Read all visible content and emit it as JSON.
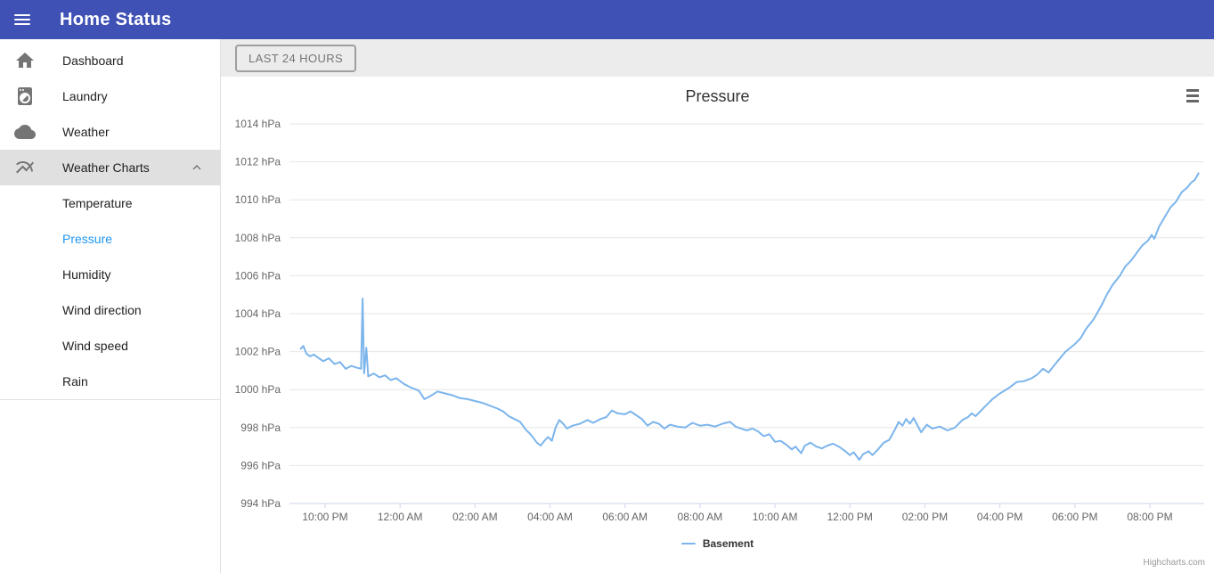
{
  "header": {
    "title": "Home Status"
  },
  "sidebar": {
    "items": [
      {
        "label": "Dashboard",
        "icon": "home"
      },
      {
        "label": "Laundry",
        "icon": "laundry"
      },
      {
        "label": "Weather",
        "icon": "cloud"
      },
      {
        "label": "Weather Charts",
        "icon": "multiline-chart",
        "active": true,
        "expanded": true
      }
    ],
    "subitems": [
      {
        "label": "Temperature"
      },
      {
        "label": "Pressure",
        "selected": true
      },
      {
        "label": "Humidity"
      },
      {
        "label": "Wind direction"
      },
      {
        "label": "Wind speed"
      },
      {
        "label": "Rain"
      }
    ]
  },
  "toolbar": {
    "range_button": "LAST 24 HOURS"
  },
  "colors": {
    "header": "#3f51b5",
    "active_link": "#2196f3",
    "series_basement": "#7cb5ec"
  },
  "chart_data": {
    "type": "line",
    "title": "Pressure",
    "ylabel": "hPa",
    "credits": "Highcharts.com",
    "legend_position": "bottom-center",
    "grid": true,
    "ylim": [
      994,
      1014
    ],
    "xlim_hours": [
      21.05,
      45.45
    ],
    "x_hours_note": "decimal hours; 22 = 10:00 PM day 1, values > 24 are next day",
    "y_ticks": [
      {
        "v": 994,
        "label": "994 hPa"
      },
      {
        "v": 996,
        "label": "996 hPa"
      },
      {
        "v": 998,
        "label": "998 hPa"
      },
      {
        "v": 1000,
        "label": "1000 hPa"
      },
      {
        "v": 1002,
        "label": "1002 hPa"
      },
      {
        "v": 1004,
        "label": "1004 hPa"
      },
      {
        "v": 1006,
        "label": "1006 hPa"
      },
      {
        "v": 1008,
        "label": "1008 hPa"
      },
      {
        "v": 1010,
        "label": "1010 hPa"
      },
      {
        "v": 1012,
        "label": "1012 hPa"
      },
      {
        "v": 1014,
        "label": "1014 hPa"
      }
    ],
    "x_ticks": [
      {
        "hour": 22,
        "label": "10:00 PM"
      },
      {
        "hour": 24,
        "label": "12:00 AM"
      },
      {
        "hour": 26,
        "label": "02:00 AM"
      },
      {
        "hour": 28,
        "label": "04:00 AM"
      },
      {
        "hour": 30,
        "label": "06:00 AM"
      },
      {
        "hour": 32,
        "label": "08:00 AM"
      },
      {
        "hour": 34,
        "label": "10:00 AM"
      },
      {
        "hour": 36,
        "label": "12:00 PM"
      },
      {
        "hour": 38,
        "label": "02:00 PM"
      },
      {
        "hour": 40,
        "label": "04:00 PM"
      },
      {
        "hour": 42,
        "label": "06:00 PM"
      },
      {
        "hour": 44,
        "label": "08:00 PM"
      }
    ],
    "series": [
      {
        "name": "Basement",
        "color": "#7cb5ec",
        "points": [
          [
            21.35,
            1002.15
          ],
          [
            21.42,
            1002.3
          ],
          [
            21.5,
            1001.9
          ],
          [
            21.6,
            1001.75
          ],
          [
            21.7,
            1001.85
          ],
          [
            21.8,
            1001.7
          ],
          [
            21.95,
            1001.5
          ],
          [
            22.1,
            1001.65
          ],
          [
            22.25,
            1001.35
          ],
          [
            22.4,
            1001.45
          ],
          [
            22.55,
            1001.1
          ],
          [
            22.7,
            1001.25
          ],
          [
            22.85,
            1001.15
          ],
          [
            22.96,
            1001.1
          ],
          [
            23.0,
            1004.8
          ],
          [
            23.04,
            1000.85
          ],
          [
            23.1,
            1002.2
          ],
          [
            23.15,
            1000.7
          ],
          [
            23.3,
            1000.85
          ],
          [
            23.45,
            1000.65
          ],
          [
            23.6,
            1000.75
          ],
          [
            23.75,
            1000.5
          ],
          [
            23.9,
            1000.6
          ],
          [
            24.1,
            1000.3
          ],
          [
            24.3,
            1000.1
          ],
          [
            24.5,
            999.95
          ],
          [
            24.65,
            999.5
          ],
          [
            24.8,
            999.65
          ],
          [
            25.0,
            999.9
          ],
          [
            25.2,
            999.8
          ],
          [
            25.4,
            999.7
          ],
          [
            25.6,
            999.55
          ],
          [
            25.8,
            999.5
          ],
          [
            26.0,
            999.4
          ],
          [
            26.2,
            999.3
          ],
          [
            26.4,
            999.15
          ],
          [
            26.6,
            999.0
          ],
          [
            26.75,
            998.85
          ],
          [
            26.9,
            998.6
          ],
          [
            27.05,
            998.45
          ],
          [
            27.2,
            998.3
          ],
          [
            27.35,
            997.9
          ],
          [
            27.5,
            997.6
          ],
          [
            27.65,
            997.2
          ],
          [
            27.75,
            997.05
          ],
          [
            27.85,
            997.3
          ],
          [
            27.95,
            997.5
          ],
          [
            28.05,
            997.3
          ],
          [
            28.15,
            998.0
          ],
          [
            28.25,
            998.4
          ],
          [
            28.35,
            998.2
          ],
          [
            28.45,
            997.95
          ],
          [
            28.6,
            998.1
          ],
          [
            28.8,
            998.2
          ],
          [
            29.0,
            998.4
          ],
          [
            29.15,
            998.25
          ],
          [
            29.35,
            998.45
          ],
          [
            29.5,
            998.55
          ],
          [
            29.65,
            998.9
          ],
          [
            29.8,
            998.75
          ],
          [
            30.0,
            998.7
          ],
          [
            30.15,
            998.85
          ],
          [
            30.3,
            998.65
          ],
          [
            30.45,
            998.45
          ],
          [
            30.6,
            998.1
          ],
          [
            30.75,
            998.3
          ],
          [
            30.9,
            998.2
          ],
          [
            31.05,
            997.95
          ],
          [
            31.2,
            998.15
          ],
          [
            31.4,
            998.05
          ],
          [
            31.6,
            998.0
          ],
          [
            31.8,
            998.25
          ],
          [
            32.0,
            998.1
          ],
          [
            32.2,
            998.15
          ],
          [
            32.4,
            998.05
          ],
          [
            32.6,
            998.2
          ],
          [
            32.8,
            998.3
          ],
          [
            32.95,
            998.05
          ],
          [
            33.1,
            997.95
          ],
          [
            33.25,
            997.85
          ],
          [
            33.4,
            997.95
          ],
          [
            33.55,
            997.8
          ],
          [
            33.7,
            997.55
          ],
          [
            33.85,
            997.65
          ],
          [
            34.0,
            997.25
          ],
          [
            34.15,
            997.3
          ],
          [
            34.3,
            997.1
          ],
          [
            34.45,
            996.85
          ],
          [
            34.55,
            997.0
          ],
          [
            34.7,
            996.65
          ],
          [
            34.8,
            997.05
          ],
          [
            34.95,
            997.2
          ],
          [
            35.1,
            997.0
          ],
          [
            35.25,
            996.9
          ],
          [
            35.4,
            997.05
          ],
          [
            35.55,
            997.15
          ],
          [
            35.7,
            997.0
          ],
          [
            35.85,
            996.8
          ],
          [
            36.0,
            996.55
          ],
          [
            36.1,
            996.7
          ],
          [
            36.25,
            996.3
          ],
          [
            36.35,
            996.6
          ],
          [
            36.5,
            996.75
          ],
          [
            36.6,
            996.55
          ],
          [
            36.75,
            996.85
          ],
          [
            36.9,
            997.2
          ],
          [
            37.05,
            997.35
          ],
          [
            37.2,
            997.9
          ],
          [
            37.3,
            998.3
          ],
          [
            37.4,
            998.1
          ],
          [
            37.5,
            998.45
          ],
          [
            37.6,
            998.2
          ],
          [
            37.7,
            998.5
          ],
          [
            37.9,
            997.75
          ],
          [
            38.05,
            998.15
          ],
          [
            38.2,
            997.95
          ],
          [
            38.4,
            998.05
          ],
          [
            38.6,
            997.85
          ],
          [
            38.8,
            998.0
          ],
          [
            39.0,
            998.4
          ],
          [
            39.15,
            998.55
          ],
          [
            39.25,
            998.75
          ],
          [
            39.35,
            998.6
          ],
          [
            39.5,
            998.9
          ],
          [
            39.65,
            999.2
          ],
          [
            39.8,
            999.5
          ],
          [
            40.0,
            999.8
          ],
          [
            40.25,
            1000.1
          ],
          [
            40.45,
            1000.4
          ],
          [
            40.65,
            1000.45
          ],
          [
            40.85,
            1000.6
          ],
          [
            41.0,
            1000.8
          ],
          [
            41.15,
            1001.1
          ],
          [
            41.3,
            1000.9
          ],
          [
            41.5,
            1001.4
          ],
          [
            41.75,
            1002.0
          ],
          [
            42.0,
            1002.4
          ],
          [
            42.15,
            1002.7
          ],
          [
            42.3,
            1003.2
          ],
          [
            42.5,
            1003.7
          ],
          [
            42.7,
            1004.4
          ],
          [
            42.85,
            1005.0
          ],
          [
            43.0,
            1005.5
          ],
          [
            43.2,
            1006.0
          ],
          [
            43.35,
            1006.5
          ],
          [
            43.5,
            1006.8
          ],
          [
            43.65,
            1007.2
          ],
          [
            43.8,
            1007.6
          ],
          [
            43.95,
            1007.85
          ],
          [
            44.05,
            1008.15
          ],
          [
            44.12,
            1007.95
          ],
          [
            44.25,
            1008.6
          ],
          [
            44.4,
            1009.1
          ],
          [
            44.55,
            1009.6
          ],
          [
            44.7,
            1009.9
          ],
          [
            44.85,
            1010.4
          ],
          [
            45.0,
            1010.65
          ],
          [
            45.1,
            1010.9
          ],
          [
            45.2,
            1011.05
          ],
          [
            45.3,
            1011.4
          ]
        ]
      }
    ]
  }
}
